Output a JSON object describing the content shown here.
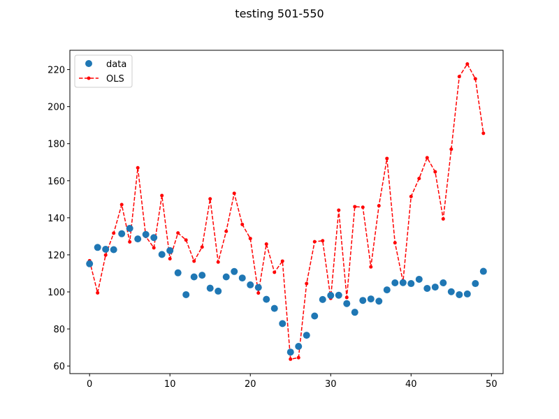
{
  "chart_data": {
    "type": "scatter",
    "title": "testing 501-550",
    "xlabel": "",
    "ylabel": "",
    "xlim": [
      -2.45,
      51.45
    ],
    "ylim": [
      55.9,
      230.4
    ],
    "xticks": [
      0,
      10,
      20,
      30,
      40,
      50
    ],
    "yticks": [
      60,
      80,
      100,
      120,
      140,
      160,
      180,
      200,
      220
    ],
    "grid": false,
    "legend_position": "top-left",
    "series": [
      {
        "name": "data",
        "style": "markers",
        "color": "#1f77b4",
        "x": [
          0,
          1,
          2,
          3,
          4,
          5,
          6,
          7,
          8,
          9,
          10,
          11,
          12,
          13,
          14,
          15,
          16,
          17,
          18,
          19,
          20,
          21,
          22,
          23,
          24,
          25,
          26,
          27,
          28,
          29,
          30,
          31,
          32,
          33,
          34,
          35,
          36,
          37,
          38,
          39,
          40,
          41,
          42,
          43,
          44,
          45,
          46,
          47,
          48,
          49
        ],
        "y": [
          115.2,
          124.0,
          123.0,
          122.8,
          131.4,
          134.3,
          128.6,
          131.0,
          129.3,
          120.2,
          122.3,
          110.3,
          98.5,
          108.1,
          109.0,
          102.0,
          100.4,
          108.1,
          111.0,
          107.5,
          103.8,
          102.4,
          96.0,
          91.1,
          82.9,
          67.5,
          70.6,
          76.6,
          87.0,
          95.9,
          98.1,
          98.2,
          93.7,
          89.0,
          95.4,
          96.2,
          95.0,
          101.1,
          104.9,
          105.0,
          104.5,
          106.8,
          101.9,
          102.6,
          104.9,
          100.1,
          98.5,
          98.9,
          104.5,
          111.1
        ]
      },
      {
        "name": "OLS",
        "style": "dashed-line-dots",
        "color": "#ff0000",
        "x": [
          0,
          1,
          2,
          3,
          4,
          5,
          6,
          7,
          8,
          9,
          10,
          11,
          12,
          13,
          14,
          15,
          16,
          17,
          18,
          19,
          20,
          21,
          22,
          23,
          24,
          25,
          26,
          27,
          28,
          29,
          30,
          31,
          32,
          33,
          34,
          35,
          36,
          37,
          38,
          39,
          40,
          41,
          42,
          43,
          44,
          45,
          46,
          47,
          48,
          49
        ],
        "y": [
          116.8,
          99.5,
          119.9,
          131.7,
          147.1,
          127.0,
          167.0,
          129.9,
          123.8,
          152.0,
          117.9,
          131.8,
          128.0,
          116.6,
          124.2,
          150.2,
          116.1,
          132.7,
          153.2,
          136.4,
          128.8,
          99.4,
          125.8,
          110.6,
          116.6,
          63.7,
          64.5,
          104.5,
          127.1,
          127.6,
          96.5,
          144.1,
          97.0,
          146.0,
          145.7,
          113.5,
          146.5,
          172.0,
          126.5,
          105.5,
          151.5,
          161.2,
          172.4,
          164.8,
          139.4,
          177.0,
          216.2,
          223.0,
          215.0,
          185.6
        ]
      }
    ]
  }
}
